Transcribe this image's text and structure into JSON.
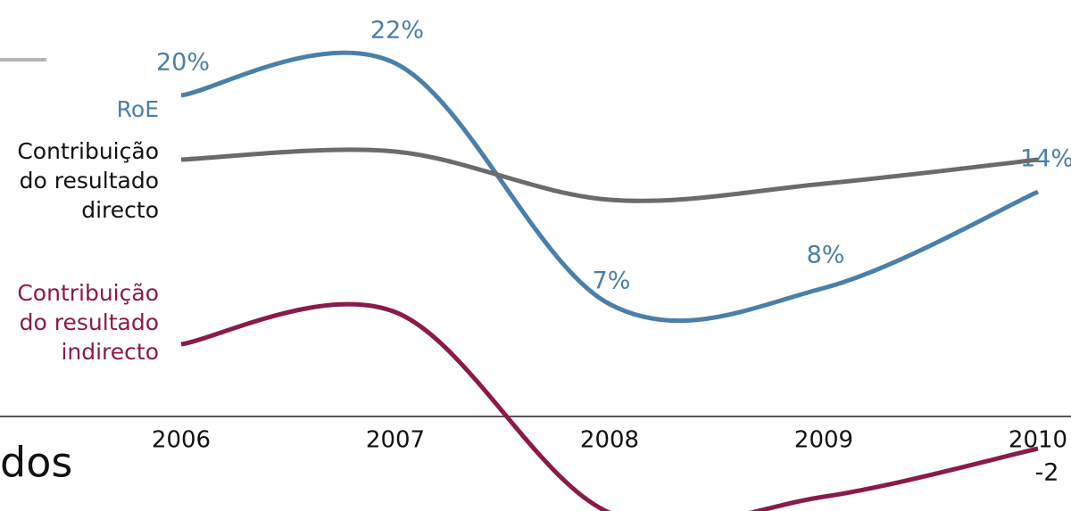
{
  "chart_data": {
    "type": "line",
    "categories": [
      "2006",
      "2007",
      "2008",
      "2009",
      "2010"
    ],
    "series": [
      {
        "name": "RoE",
        "color": "#4a7fa8",
        "values": [
          20,
          22,
          7,
          8,
          14
        ],
        "value_labels": [
          "20%",
          "22%",
          "7%",
          "8%",
          "14%"
        ]
      },
      {
        "name": "Contribuição do resultado directo",
        "color": "#6b6b6b",
        "values": [
          16,
          16.5,
          13.5,
          14.5,
          16
        ]
      },
      {
        "name": "Contribuição do resultado indirecto",
        "color": "#8b1a4a",
        "values": [
          4.5,
          6.5,
          -6,
          -5,
          -2
        ],
        "value_labels": [
          null,
          null,
          null,
          null,
          "-2"
        ]
      }
    ]
  },
  "page_fragment": "dos"
}
